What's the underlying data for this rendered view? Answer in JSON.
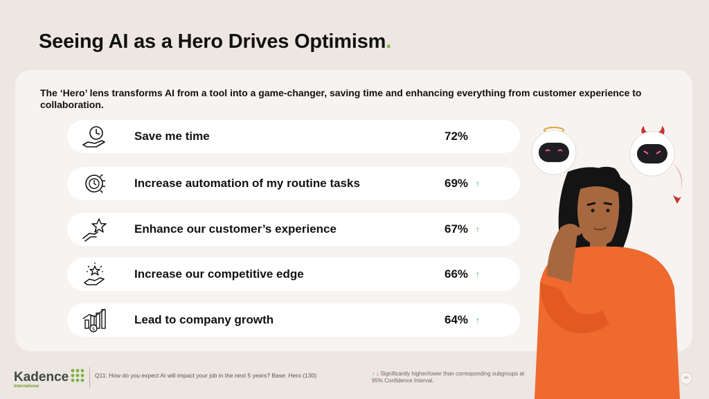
{
  "title": {
    "text": "Seeing AI as a Hero Drives Optimism",
    "dot": "."
  },
  "subtitle": "The ‘Hero’ lens transforms AI from a tool into a game-changer, saving time and enhancing everything from customer experience to collaboration.",
  "rows": [
    {
      "icon": "hand-clock-icon",
      "label": "Save me time",
      "value": "72%",
      "arrow": ""
    },
    {
      "icon": "gear-clock-icon",
      "label": "Increase automation of my routine tasks",
      "value": "69%",
      "arrow": "↑"
    },
    {
      "icon": "hand-star-icon",
      "label": "Enhance our customer’s experience",
      "value": "67%",
      "arrow": "↑"
    },
    {
      "icon": "hand-sparkle-star-icon",
      "label": "Increase our competitive edge",
      "value": "66%",
      "arrow": "↑"
    },
    {
      "icon": "growth-chart-icon",
      "label": "Lead to company growth",
      "value": "64%",
      "arrow": "↑"
    }
  ],
  "footer": {
    "logo": "Kadence",
    "logo_sub": "International",
    "question": "Q11:  How do you expect AI will impact your job in the next 5 years? Base: Hero (130)",
    "note_up": "↑",
    "note_down": "↓",
    "note": "Significantly higher/lower than corresponding subgroups at 95% Confidence Interval.",
    "page": "‹#›"
  },
  "colors": {
    "accent_green": "#7cb342",
    "up_arrow": "#2eaa4a",
    "down_arrow": "#d9342b",
    "background": "#ede6e2",
    "panel": "#f6f3f1",
    "shirt": "#ef6a2e"
  }
}
